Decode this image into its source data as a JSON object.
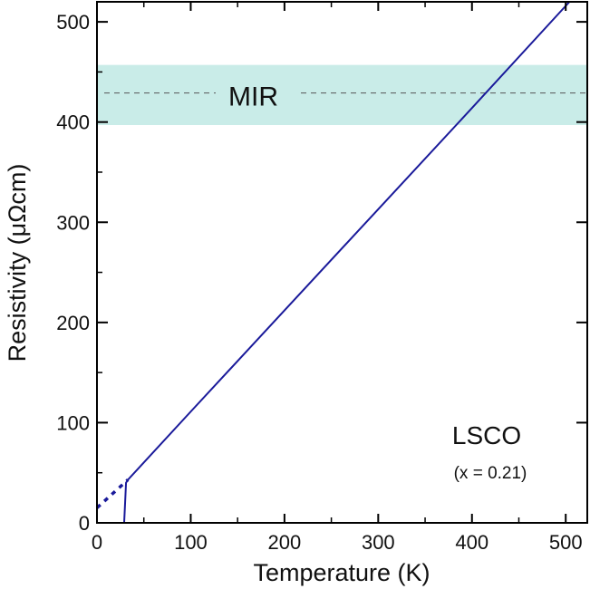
{
  "chart_data": {
    "type": "line",
    "xlabel": "Temperature (K)",
    "ylabel": "Resistivity (μΩcm)",
    "xlim": [
      0,
      523
    ],
    "ylim": [
      0,
      520
    ],
    "xticks": [
      0,
      100,
      200,
      300,
      400,
      500
    ],
    "yticks": [
      0,
      100,
      200,
      300,
      400,
      500
    ],
    "grid": false,
    "series": [
      {
        "style": "solid",
        "color": "#1a1a9a",
        "x": [
          29,
          30,
          31,
          33,
          100,
          200,
          300,
          400,
          504
        ],
        "y": [
          0,
          20,
          40,
          43,
          111,
          212,
          313,
          414,
          520
        ]
      },
      {
        "style": "dotted",
        "color": "#1a1a9a",
        "x": [
          0,
          33
        ],
        "y": [
          15,
          43
        ]
      }
    ],
    "band": {
      "label": "MIR",
      "range": [
        397,
        457
      ],
      "line": 429,
      "color": "#c9ece8"
    },
    "annotations": [
      "LSCO",
      "(x = 0.21)"
    ]
  }
}
